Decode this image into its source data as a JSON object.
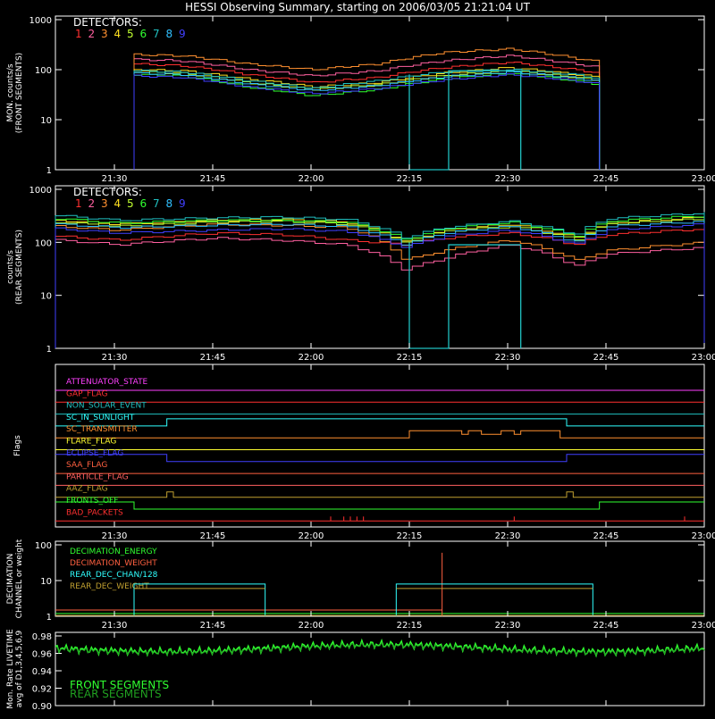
{
  "title": "HESSI Observing Summary, starting on 2006/03/05 21:21:04 UT",
  "colors": {
    "white": "#ffffff",
    "green": "#22cc22",
    "green2": "#33ff33",
    "det": [
      "#ff3030",
      "#ff60a0",
      "#ff9030",
      "#ffe020",
      "#c0ff30",
      "#30ff30",
      "#20c0c0",
      "#30c0ff",
      "#4040ff"
    ]
  },
  "detector_labels": [
    "1",
    "2",
    "3",
    "4",
    "5",
    "6",
    "7",
    "8",
    "9"
  ],
  "time_axis": {
    "start": "21:21:04",
    "end": "23:00",
    "ticks": [
      "21:30",
      "21:45",
      "22:00",
      "22:15",
      "22:30",
      "22:45",
      "23:00"
    ]
  },
  "chart_data": [
    {
      "type": "line",
      "panel": "front",
      "title": "DETECTORS:",
      "ylabel": "MON. counts/s",
      "ylabel2": "(FRONT SEGMENTS)",
      "yscale": "log",
      "ylim": [
        1,
        1000
      ],
      "yticks": [
        "1",
        "10",
        "100",
        "1000"
      ],
      "x": [
        "21:33",
        "21:40",
        "21:50",
        "22:00",
        "22:10",
        "22:20",
        "22:30",
        "22:40",
        "22:44"
      ],
      "series": [
        {
          "name": "1",
          "values": [
            130,
            120,
            80,
            55,
            70,
            110,
            140,
            100,
            85
          ]
        },
        {
          "name": "2",
          "values": [
            160,
            150,
            100,
            75,
            95,
            150,
            190,
            130,
            110
          ]
        },
        {
          "name": "3",
          "values": [
            200,
            190,
            130,
            100,
            130,
            220,
            260,
            170,
            140
          ]
        },
        {
          "name": "4",
          "values": [
            100,
            95,
            65,
            45,
            55,
            85,
            110,
            80,
            70
          ]
        },
        {
          "name": "5",
          "values": [
            90,
            85,
            55,
            40,
            50,
            75,
            95,
            70,
            60
          ]
        },
        {
          "name": "6",
          "values": [
            80,
            75,
            45,
            30,
            40,
            65,
            85,
            60,
            50
          ]
        },
        {
          "name": "7",
          "values": [
            95,
            90,
            60,
            42,
            60,
            90,
            100,
            80,
            65
          ]
        },
        {
          "name": "8",
          "values": [
            85,
            80,
            52,
            38,
            48,
            72,
            90,
            68,
            58
          ]
        },
        {
          "name": "9",
          "values": [
            75,
            70,
            45,
            33,
            42,
            62,
            80,
            60,
            50
          ]
        }
      ]
    },
    {
      "type": "line",
      "panel": "rear",
      "title": "DETECTORS:",
      "ylabel": "counts/s",
      "ylabel2": "(REAR SEGMENTS)",
      "yscale": "log",
      "ylim": [
        1,
        1000
      ],
      "yticks": [
        "1",
        "10",
        "100",
        "1000"
      ],
      "x": [
        "21:21",
        "21:30",
        "21:45",
        "21:55",
        "22:05",
        "22:14",
        "22:20",
        "22:30",
        "22:40",
        "22:45",
        "23:00"
      ],
      "series": [
        {
          "name": "1",
          "values": [
            130,
            110,
            150,
            140,
            110,
            90,
            120,
            150,
            90,
            140,
            180
          ]
        },
        {
          "name": "2",
          "values": [
            110,
            90,
            120,
            110,
            90,
            30,
            50,
            90,
            35,
            60,
            80
          ]
        },
        {
          "name": "3",
          "values": [
            200,
            170,
            220,
            210,
            190,
            45,
            70,
            110,
            45,
            70,
            100
          ]
        },
        {
          "name": "4",
          "values": [
            260,
            220,
            260,
            270,
            240,
            100,
            170,
            220,
            120,
            230,
            300
          ]
        },
        {
          "name": "5",
          "values": [
            240,
            200,
            240,
            250,
            220,
            95,
            160,
            200,
            110,
            220,
            280
          ]
        },
        {
          "name": "6",
          "values": [
            280,
            230,
            260,
            260,
            240,
            110,
            180,
            240,
            130,
            250,
            320
          ]
        },
        {
          "name": "7",
          "values": [
            320,
            260,
            290,
            300,
            270,
            120,
            190,
            250,
            140,
            280,
            360
          ]
        },
        {
          "name": "8",
          "values": [
            220,
            190,
            210,
            220,
            200,
            90,
            150,
            200,
            100,
            200,
            250
          ]
        },
        {
          "name": "9",
          "values": [
            180,
            150,
            170,
            180,
            160,
            80,
            130,
            170,
            90,
            170,
            220
          ]
        }
      ]
    },
    {
      "type": "line",
      "panel": "flags",
      "ylabel": "Flags",
      "flags": [
        {
          "name": "ATTENUATOR_STATE",
          "color": "#ff40ff"
        },
        {
          "name": "GAP_FLAG",
          "color": "#ff3030"
        },
        {
          "name": "NON_SOLAR_EVENT",
          "color": "#20c0c0"
        },
        {
          "name": "SC_IN_SUNLIGHT",
          "color": "#30ffff"
        },
        {
          "name": "SC_TRANSMITTER",
          "color": "#ff9030"
        },
        {
          "name": "FLARE_FLAG",
          "color": "#ffff30"
        },
        {
          "name": "ECLIPSE_FLAG",
          "color": "#4040ff"
        },
        {
          "name": "SAA_FLAG",
          "color": "#ff6040"
        },
        {
          "name": "PARTICLE_FLAG",
          "color": "#ff6060"
        },
        {
          "name": "AAZ_FLAG",
          "color": "#c0a030"
        },
        {
          "name": "FRONTS_OFF",
          "color": "#30ff30"
        },
        {
          "name": "BAD_PACKETS",
          "color": "#ff3030"
        }
      ]
    },
    {
      "type": "line",
      "panel": "decimation",
      "ylabel": "DECIMATION",
      "ylabel2": "CHANNEL or weight",
      "yscale": "log",
      "ylim": [
        1,
        100
      ],
      "yticks": [
        "1",
        "10",
        "100"
      ],
      "series": [
        {
          "name": "DECIMATION_ENERGY",
          "color": "#30ff30"
        },
        {
          "name": "DECIMATION_WEIGHT",
          "color": "#ff6040"
        },
        {
          "name": "REAR_DEC_CHAN/128",
          "color": "#30ffff"
        },
        {
          "name": "REAR_DEC_WEIGHT",
          "color": "#c0a030"
        }
      ]
    },
    {
      "type": "line",
      "panel": "livetime",
      "ylabel": "Mon. Rate LIVETIME",
      "ylabel2": "avg of D1,3,4,5,6,9",
      "ylim": [
        0.9,
        0.98
      ],
      "yticks": [
        "0.90",
        "0.92",
        "0.94",
        "0.96",
        "0.98"
      ],
      "series": [
        {
          "name": "FRONT SEGMENTS",
          "color": "#30ff30"
        },
        {
          "name": "REAR SEGMENTS",
          "color": "#20a020"
        }
      ]
    }
  ]
}
